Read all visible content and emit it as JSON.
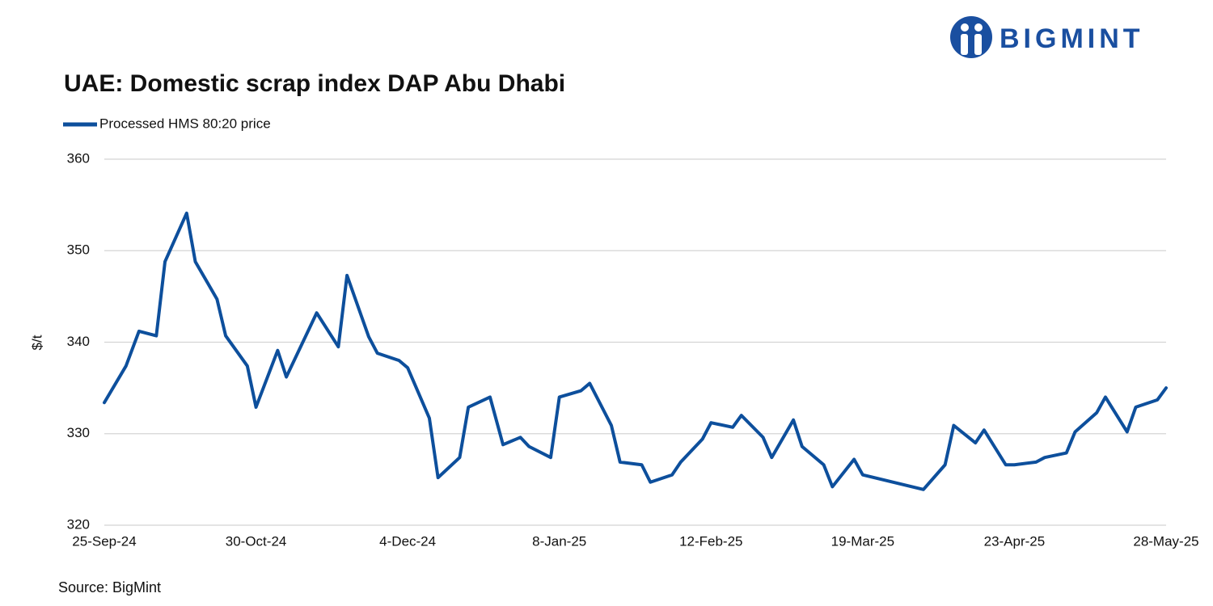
{
  "logo": "BIGMINT",
  "chart_data": {
    "type": "line",
    "title": "UAE: Domestic scrap index DAP Abu Dhabi",
    "y_label": "$/t",
    "source": "Source: BigMint",
    "grid": true,
    "legend": "top-left",
    "x": [
      "2024-09-25",
      "2024-09-30",
      "2024-10-03",
      "2024-10-07",
      "2024-10-09",
      "2024-10-14",
      "2024-10-16",
      "2024-10-21",
      "2024-10-23",
      "2024-10-28",
      "2024-10-30",
      "2024-11-04",
      "2024-11-06",
      "2024-11-13",
      "2024-11-18",
      "2024-11-20",
      "2024-11-25",
      "2024-11-27",
      "2024-12-02",
      "2024-12-04",
      "2024-12-09",
      "2024-12-11",
      "2024-12-16",
      "2024-12-18",
      "2024-12-23",
      "2024-12-26",
      "2024-12-30",
      "2025-01-01",
      "2025-01-06",
      "2025-01-08",
      "2025-01-13",
      "2025-01-15",
      "2025-01-20",
      "2025-01-22",
      "2025-01-27",
      "2025-01-29",
      "2025-02-03",
      "2025-02-05",
      "2025-02-10",
      "2025-02-12",
      "2025-02-17",
      "2025-02-19",
      "2025-02-24",
      "2025-02-26",
      "2025-03-03",
      "2025-03-05",
      "2025-03-10",
      "2025-03-12",
      "2025-03-17",
      "2025-03-19",
      "2025-04-02",
      "2025-04-07",
      "2025-04-09",
      "2025-04-14",
      "2025-04-16",
      "2025-04-21",
      "2025-04-23",
      "2025-04-28",
      "2025-04-30",
      "2025-05-05",
      "2025-05-07",
      "2025-05-12",
      "2025-05-14",
      "2025-05-19",
      "2025-05-21",
      "2025-05-26",
      "2025-05-28"
    ],
    "series": [
      {
        "name": "Processed HMS 80:20 price",
        "color": "#0d4f9c",
        "values": [
          333.4,
          337.4,
          341.2,
          340.7,
          348.8,
          354.1,
          348.8,
          344.7,
          340.7,
          337.4,
          332.9,
          339.1,
          336.2,
          343.2,
          339.5,
          347.3,
          340.6,
          338.8,
          338.0,
          337.2,
          331.7,
          325.2,
          327.4,
          332.9,
          334.0,
          328.8,
          329.6,
          328.6,
          327.4,
          334.0,
          334.7,
          335.5,
          330.9,
          326.9,
          326.6,
          324.7,
          325.5,
          326.9,
          329.4,
          331.2,
          330.7,
          332.0,
          329.6,
          327.4,
          331.5,
          328.6,
          326.6,
          324.2,
          327.2,
          325.5,
          323.9,
          326.6,
          330.9,
          329.0,
          330.4,
          326.6,
          326.6,
          326.9,
          327.4,
          327.9,
          330.2,
          332.3,
          334.0,
          330.2,
          332.9,
          333.7,
          335.0
        ]
      }
    ],
    "xlim": [
      "2024-09-25",
      "2025-05-28"
    ],
    "xticks": [
      {
        "value": "2024-09-25",
        "label": "25-Sep-24"
      },
      {
        "value": "2024-10-30",
        "label": "30-Oct-24"
      },
      {
        "value": "2024-12-04",
        "label": "4-Dec-24"
      },
      {
        "value": "2025-01-08",
        "label": "8-Jan-25"
      },
      {
        "value": "2025-02-12",
        "label": "12-Feb-25"
      },
      {
        "value": "2025-03-19",
        "label": "19-Mar-25"
      },
      {
        "value": "2025-04-23",
        "label": "23-Apr-25"
      },
      {
        "value": "2025-05-28",
        "label": "28-May-25"
      }
    ],
    "ylim": [
      320,
      360
    ],
    "yticks": [
      320,
      330,
      340,
      350,
      360
    ]
  }
}
